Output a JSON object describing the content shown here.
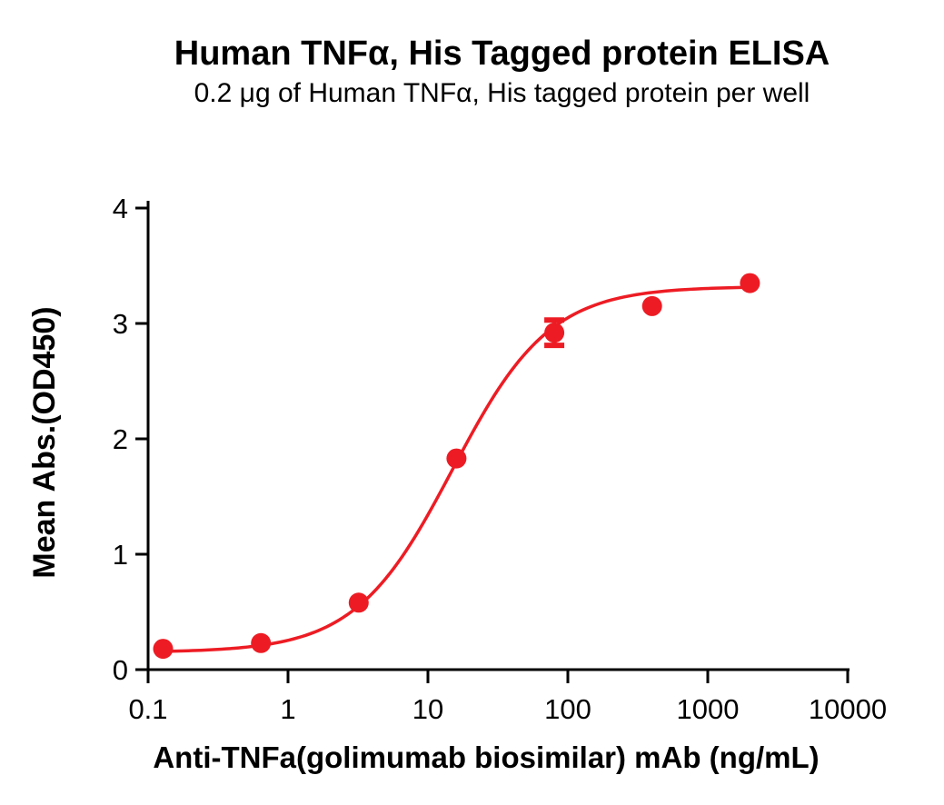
{
  "figure": {
    "background_color": "#ffffff",
    "text_color": "#000000"
  },
  "chart_data": {
    "type": "scatter",
    "title": "Human TNFα, His Tagged protein ELISA",
    "subtitle": "0.2 μg of Human TNFα, His tagged protein per well",
    "xlabel": "Anti-TNFa(golimumab biosimilar) mAb (ng/mL)",
    "ylabel": "Mean Abs.(OD450)",
    "x_scale": "log10",
    "xlim": [
      0.1,
      10000
    ],
    "ylim": [
      0,
      4
    ],
    "x_ticks": [
      0.1,
      1,
      10,
      100,
      1000,
      10000
    ],
    "x_tick_labels": [
      "0.1",
      "1",
      "10",
      "100",
      "1000",
      "10000"
    ],
    "y_ticks": [
      0,
      1,
      2,
      3,
      4
    ],
    "y_tick_labels": [
      "0",
      "1",
      "2",
      "3",
      "4"
    ],
    "grid": false,
    "legend": "none",
    "axis_color": "#000000",
    "series": [
      {
        "name": "Anti-TNFa(golimumab biosimilar) mAb",
        "color": "#ED1C24",
        "marker": "circle",
        "x": [
          0.128,
          0.64,
          3.2,
          16,
          80,
          400,
          2000
        ],
        "y": [
          0.18,
          0.23,
          0.58,
          1.83,
          2.92,
          3.15,
          3.35
        ],
        "y_err": [
          0,
          0,
          0,
          0,
          0.11,
          0,
          0
        ],
        "fit_curve": {
          "model": "4PL",
          "bottom": 0.15,
          "top": 3.32,
          "ec50": 15,
          "hill": 1.25
        }
      }
    ]
  }
}
